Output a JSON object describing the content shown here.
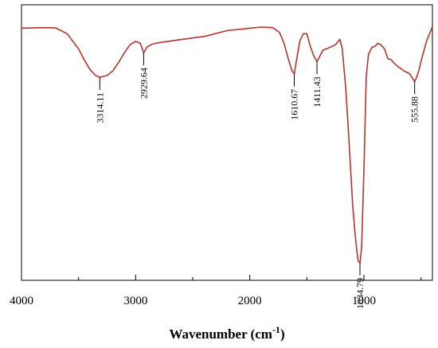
{
  "chart_data": {
    "type": "line",
    "title": "",
    "xlabel": "Wavenumber (cm",
    "xlabel_sup": "-1",
    "xlabel_close": ")",
    "ylabel": "",
    "xlim": [
      4000,
      400
    ],
    "x_reversed": true,
    "ylim": [
      0,
      100
    ],
    "grid": false,
    "legend": "none",
    "line_color": "#b5342b",
    "x_ticks": [
      {
        "value": 4000,
        "label": "4000"
      },
      {
        "value": 3000,
        "label": "3000"
      },
      {
        "value": 2000,
        "label": "2000"
      },
      {
        "value": 1000,
        "label": "1000"
      }
    ],
    "peaks": [
      {
        "x": 3314.11,
        "label": "3314.11"
      },
      {
        "x": 2929.64,
        "label": "2929.64"
      },
      {
        "x": 1610.67,
        "label": "1610.67"
      },
      {
        "x": 1411.43,
        "label": "1411.43"
      },
      {
        "x": 1034.79,
        "label": "1034.79"
      },
      {
        "x": 555.88,
        "label": "555.88"
      }
    ],
    "series": [
      {
        "x": [
          4000,
          3800,
          3700,
          3600,
          3500,
          3450,
          3400,
          3350,
          3314,
          3250,
          3200,
          3150,
          3100,
          3050,
          3000,
          2960,
          2929,
          2900,
          2850,
          2800,
          2600,
          2400,
          2200,
          2000,
          1900,
          1800,
          1740,
          1700,
          1660,
          1630,
          1610,
          1590,
          1560,
          1530,
          1500,
          1470,
          1440,
          1411,
          1390,
          1360,
          1300,
          1250,
          1210,
          1190,
          1160,
          1130,
          1100,
          1080,
          1060,
          1050,
          1040,
          1034,
          1020,
          1000,
          980,
          960,
          930,
          900,
          880,
          850,
          820,
          790,
          760,
          740,
          700,
          650,
          600,
          570,
          555,
          540,
          520,
          500,
          470,
          450,
          430,
          410,
          400
        ],
        "y": [
          91.5,
          91.7,
          91.6,
          89.5,
          84,
          80,
          76.5,
          74.3,
          73.7,
          74.3,
          76,
          79,
          82.5,
          85.5,
          86.7,
          86,
          82.6,
          84.7,
          85.8,
          86.2,
          87.4,
          88.5,
          90.6,
          91.5,
          91.9,
          91.7,
          90,
          86,
          80,
          76,
          74.9,
          80,
          87,
          89.5,
          89.5,
          85,
          81.5,
          79.4,
          81,
          83.5,
          84.5,
          85.5,
          87.5,
          84,
          70,
          50,
          28,
          18,
          10,
          7,
          6.5,
          6.4,
          12,
          40,
          74,
          82,
          84.5,
          85,
          86,
          85.5,
          84,
          80.5,
          80,
          79,
          77.5,
          76,
          75,
          73,
          72.2,
          73.5,
          76,
          79.5,
          84,
          87,
          89,
          91,
          92
        ]
      }
    ]
  }
}
